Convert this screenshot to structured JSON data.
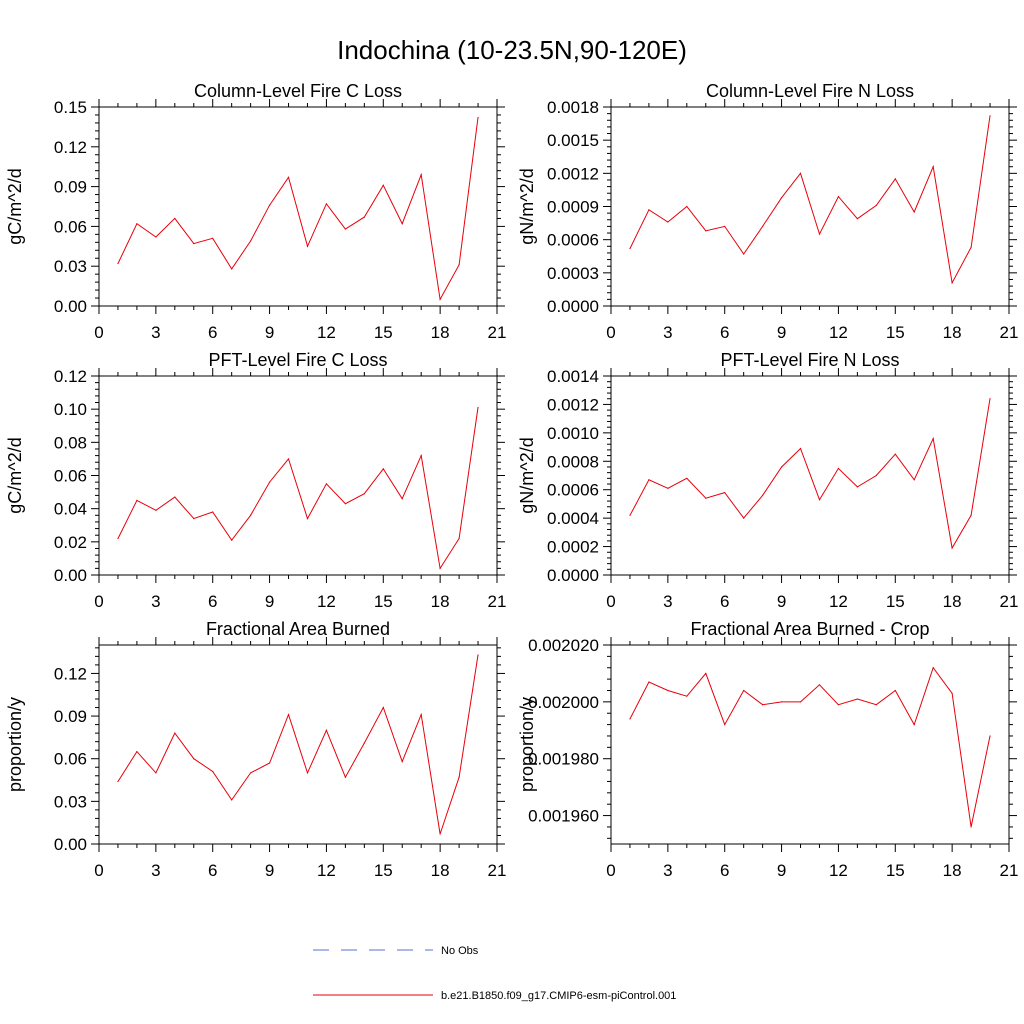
{
  "figure": {
    "title": "Indochina (10-23.5N,90-120E)"
  },
  "legend": {
    "entries": [
      {
        "label": "No Obs",
        "style": "dashed",
        "color": "#5a6fd0"
      },
      {
        "label": "b.e21.B1850.f09_g17.CMIP6-esm-piControl.001",
        "style": "solid",
        "color": "#e8000b"
      }
    ]
  },
  "chart_data": [
    {
      "type": "line",
      "title": "Column-Level Fire C Loss",
      "xlabel": "",
      "ylabel": "gC/m^2/d",
      "xlim": [
        0,
        21
      ],
      "ylim": [
        0,
        0.15
      ],
      "xticks": [
        0,
        3,
        6,
        9,
        12,
        15,
        18,
        21
      ],
      "xtick_labels": [
        "0",
        "3",
        "6",
        "9",
        "12",
        "15",
        "18",
        "21"
      ],
      "yticks": [
        0,
        0.03,
        0.06,
        0.09,
        0.12,
        0.15
      ],
      "ytick_labels": [
        "0.00",
        "0.03",
        "0.06",
        "0.09",
        "0.12",
        "0.15"
      ],
      "series": [
        {
          "name": "b.e21.B1850.f09_g17.CMIP6-esm-piControl.001",
          "color": "#e8000b",
          "x": [
            1,
            2,
            3,
            4,
            5,
            6,
            7,
            8,
            9,
            10,
            11,
            12,
            13,
            14,
            15,
            16,
            17,
            18,
            19,
            20
          ],
          "values": [
            0.032,
            0.062,
            0.052,
            0.066,
            0.047,
            0.051,
            0.028,
            0.049,
            0.076,
            0.097,
            0.045,
            0.077,
            0.058,
            0.067,
            0.091,
            0.062,
            0.099,
            0.005,
            0.031,
            0.142
          ]
        }
      ]
    },
    {
      "type": "line",
      "title": "Column-Level Fire N Loss",
      "xlabel": "",
      "ylabel": "gN/m^2/d",
      "xlim": [
        0,
        21
      ],
      "ylim": [
        0,
        0.0018
      ],
      "xticks": [
        0,
        3,
        6,
        9,
        12,
        15,
        18,
        21
      ],
      "xtick_labels": [
        "0",
        "3",
        "6",
        "9",
        "12",
        "15",
        "18",
        "21"
      ],
      "yticks": [
        0,
        0.0003,
        0.0006,
        0.0009,
        0.0012,
        0.0015,
        0.0018
      ],
      "ytick_labels": [
        "0.0000",
        "0.0003",
        "0.0006",
        "0.0009",
        "0.0012",
        "0.0015",
        "0.0018"
      ],
      "series": [
        {
          "name": "b.e21.B1850.f09_g17.CMIP6-esm-piControl.001",
          "color": "#e8000b",
          "x": [
            1,
            2,
            3,
            4,
            5,
            6,
            7,
            8,
            9,
            10,
            11,
            12,
            13,
            14,
            15,
            16,
            17,
            18,
            19,
            20
          ],
          "values": [
            0.00052,
            0.00087,
            0.00076,
            0.0009,
            0.00068,
            0.00072,
            0.00047,
            0.00072,
            0.00098,
            0.0012,
            0.00065,
            0.00099,
            0.00079,
            0.00091,
            0.00115,
            0.00085,
            0.00126,
            0.00021,
            0.00053,
            0.00172
          ]
        }
      ]
    },
    {
      "type": "line",
      "title": "PFT-Level Fire C Loss",
      "xlabel": "",
      "ylabel": "gC/m^2/d",
      "xlim": [
        0,
        21
      ],
      "ylim": [
        0,
        0.12
      ],
      "xticks": [
        0,
        3,
        6,
        9,
        12,
        15,
        18,
        21
      ],
      "xtick_labels": [
        "0",
        "3",
        "6",
        "9",
        "12",
        "15",
        "18",
        "21"
      ],
      "yticks": [
        0,
        0.02,
        0.04,
        0.06,
        0.08,
        0.1,
        0.12
      ],
      "ytick_labels": [
        "0.00",
        "0.02",
        "0.04",
        "0.06",
        "0.08",
        "0.10",
        "0.12"
      ],
      "series": [
        {
          "name": "b.e21.B1850.f09_g17.CMIP6-esm-piControl.001",
          "color": "#e8000b",
          "x": [
            1,
            2,
            3,
            4,
            5,
            6,
            7,
            8,
            9,
            10,
            11,
            12,
            13,
            14,
            15,
            16,
            17,
            18,
            19,
            20
          ],
          "values": [
            0.022,
            0.045,
            0.039,
            0.047,
            0.034,
            0.038,
            0.021,
            0.036,
            0.056,
            0.07,
            0.034,
            0.055,
            0.043,
            0.049,
            0.064,
            0.046,
            0.072,
            0.004,
            0.022,
            0.101
          ]
        }
      ]
    },
    {
      "type": "line",
      "title": "PFT-Level Fire N Loss",
      "xlabel": "",
      "ylabel": "gN/m^2/d",
      "xlim": [
        0,
        21
      ],
      "ylim": [
        0,
        0.0014
      ],
      "xticks": [
        0,
        3,
        6,
        9,
        12,
        15,
        18,
        21
      ],
      "xtick_labels": [
        "0",
        "3",
        "6",
        "9",
        "12",
        "15",
        "18",
        "21"
      ],
      "yticks": [
        0,
        0.0002,
        0.0004,
        0.0006,
        0.0008,
        0.001,
        0.0012,
        0.0014
      ],
      "ytick_labels": [
        "0.0000",
        "0.0002",
        "0.0004",
        "0.0006",
        "0.0008",
        "0.0010",
        "0.0012",
        "0.0014"
      ],
      "series": [
        {
          "name": "b.e21.B1850.f09_g17.CMIP6-esm-piControl.001",
          "color": "#e8000b",
          "x": [
            1,
            2,
            3,
            4,
            5,
            6,
            7,
            8,
            9,
            10,
            11,
            12,
            13,
            14,
            15,
            16,
            17,
            18,
            19,
            20
          ],
          "values": [
            0.00042,
            0.00067,
            0.00061,
            0.00068,
            0.00054,
            0.00058,
            0.0004,
            0.00056,
            0.00076,
            0.00089,
            0.00053,
            0.00075,
            0.00062,
            0.0007,
            0.00085,
            0.00067,
            0.00096,
            0.00019,
            0.00042,
            0.00124
          ]
        }
      ]
    },
    {
      "type": "line",
      "title": "Fractional Area Burned",
      "xlabel": "",
      "ylabel": "proportion/y",
      "xlim": [
        0,
        21
      ],
      "ylim": [
        0,
        0.14
      ],
      "xticks": [
        0,
        3,
        6,
        9,
        12,
        15,
        18,
        21
      ],
      "xtick_labels": [
        "0",
        "3",
        "6",
        "9",
        "12",
        "15",
        "18",
        "21"
      ],
      "yticks": [
        0,
        0.03,
        0.06,
        0.09,
        0.12
      ],
      "ytick_labels": [
        "0.00",
        "0.03",
        "0.06",
        "0.09",
        "0.12"
      ],
      "series": [
        {
          "name": "b.e21.B1850.f09_g17.CMIP6-esm-piControl.001",
          "color": "#e8000b",
          "x": [
            1,
            2,
            3,
            4,
            5,
            6,
            7,
            8,
            9,
            10,
            11,
            12,
            13,
            14,
            15,
            16,
            17,
            18,
            19,
            20
          ],
          "values": [
            0.044,
            0.065,
            0.05,
            0.078,
            0.06,
            0.051,
            0.031,
            0.05,
            0.057,
            0.091,
            0.05,
            0.08,
            0.047,
            0.071,
            0.096,
            0.058,
            0.091,
            0.007,
            0.047,
            0.133
          ]
        }
      ]
    },
    {
      "type": "line",
      "title": "Fractional Area Burned - Crop",
      "xlabel": "",
      "ylabel": "proportion/y",
      "xlim": [
        0,
        21
      ],
      "ylim": [
        0.00195,
        0.00202
      ],
      "xticks": [
        0,
        3,
        6,
        9,
        12,
        15,
        18,
        21
      ],
      "xtick_labels": [
        "0",
        "3",
        "6",
        "9",
        "12",
        "15",
        "18",
        "21"
      ],
      "yticks": [
        0.00196,
        0.00198,
        0.002,
        0.00202
      ],
      "ytick_labels": [
        "0.001960",
        "0.001980",
        "0.002000",
        "0.002020"
      ],
      "series": [
        {
          "name": "b.e21.B1850.f09_g17.CMIP6-esm-piControl.001",
          "color": "#e8000b",
          "x": [
            1,
            2,
            3,
            4,
            5,
            6,
            7,
            8,
            9,
            10,
            11,
            12,
            13,
            14,
            15,
            16,
            17,
            18,
            19,
            20
          ],
          "values": [
            0.001994,
            0.002007,
            0.002004,
            0.002002,
            0.00201,
            0.001992,
            0.002004,
            0.001999,
            0.002,
            0.002,
            0.002006,
            0.001999,
            0.002001,
            0.001999,
            0.002004,
            0.001992,
            0.002012,
            0.002003,
            0.001956,
            0.001988
          ]
        }
      ]
    }
  ]
}
